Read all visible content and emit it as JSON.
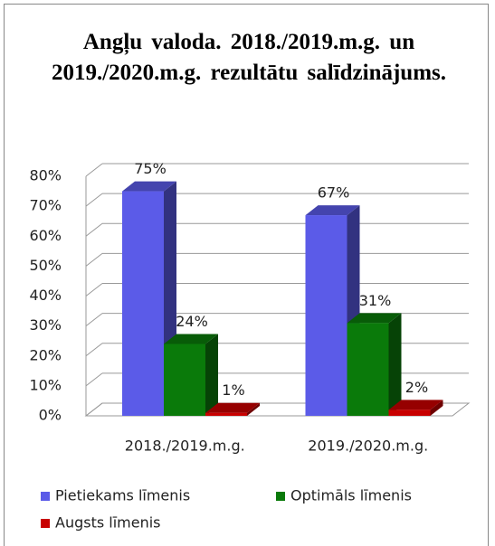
{
  "chart_data": {
    "type": "bar3d",
    "title": "Angļu valoda. 2018./2019.m.g. un 2019./2020.m.g. rezultātu salīdzinājums.",
    "categories": [
      "2018./2019.m.g.",
      "2019./2020.m.g."
    ],
    "series": [
      {
        "name": "Pietiekams līmenis",
        "color": "#5b5be8",
        "values": [
          75,
          67
        ],
        "value_labels": [
          "75%",
          "67%"
        ]
      },
      {
        "name": "Optimāls līmenis",
        "color": "#0a7a0a",
        "values": [
          24,
          31
        ],
        "value_labels": [
          "24%",
          "31%"
        ]
      },
      {
        "name": "Augsts līmenis",
        "color": "#c80000",
        "values": [
          1,
          2
        ],
        "value_labels": [
          "1%",
          "2%"
        ]
      }
    ],
    "ylim": [
      0,
      80
    ],
    "yticks": [
      {
        "value": 0,
        "label": "0%"
      },
      {
        "value": 10,
        "label": "10%"
      },
      {
        "value": 20,
        "label": "20%"
      },
      {
        "value": 30,
        "label": "30%"
      },
      {
        "value": 40,
        "label": "40%"
      },
      {
        "value": 50,
        "label": "50%"
      },
      {
        "value": 60,
        "label": "60%"
      },
      {
        "value": 70,
        "label": "70%"
      },
      {
        "value": 80,
        "label": "80%"
      }
    ],
    "grid": true
  }
}
